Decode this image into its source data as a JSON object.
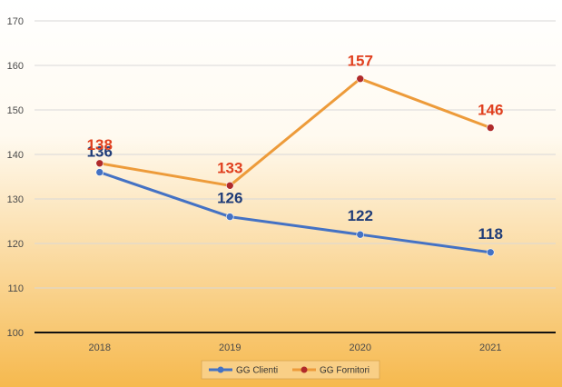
{
  "chart_data": {
    "type": "line",
    "title": "",
    "xlabel": "",
    "ylabel": "",
    "categories": [
      "2018",
      "2019",
      "2020",
      "2021"
    ],
    "ylim": [
      100,
      170
    ],
    "yticks": [
      100,
      110,
      120,
      130,
      140,
      150,
      160,
      170
    ],
    "grid": true,
    "legend_position": "bottom",
    "series": [
      {
        "name": "GG Clienti",
        "values": [
          136,
          126,
          122,
          118
        ],
        "color": "#4472c4",
        "label_color": "#1f3c78",
        "marker_color": "#4472c4"
      },
      {
        "name": "GG Fornitori",
        "values": [
          138,
          133,
          157,
          146
        ],
        "color": "#ed9b3a",
        "label_color": "#e0401f",
        "marker_color": "#b02a2a"
      }
    ]
  },
  "background": {
    "top": "#ffffff",
    "bottom": "#f6b94e"
  }
}
